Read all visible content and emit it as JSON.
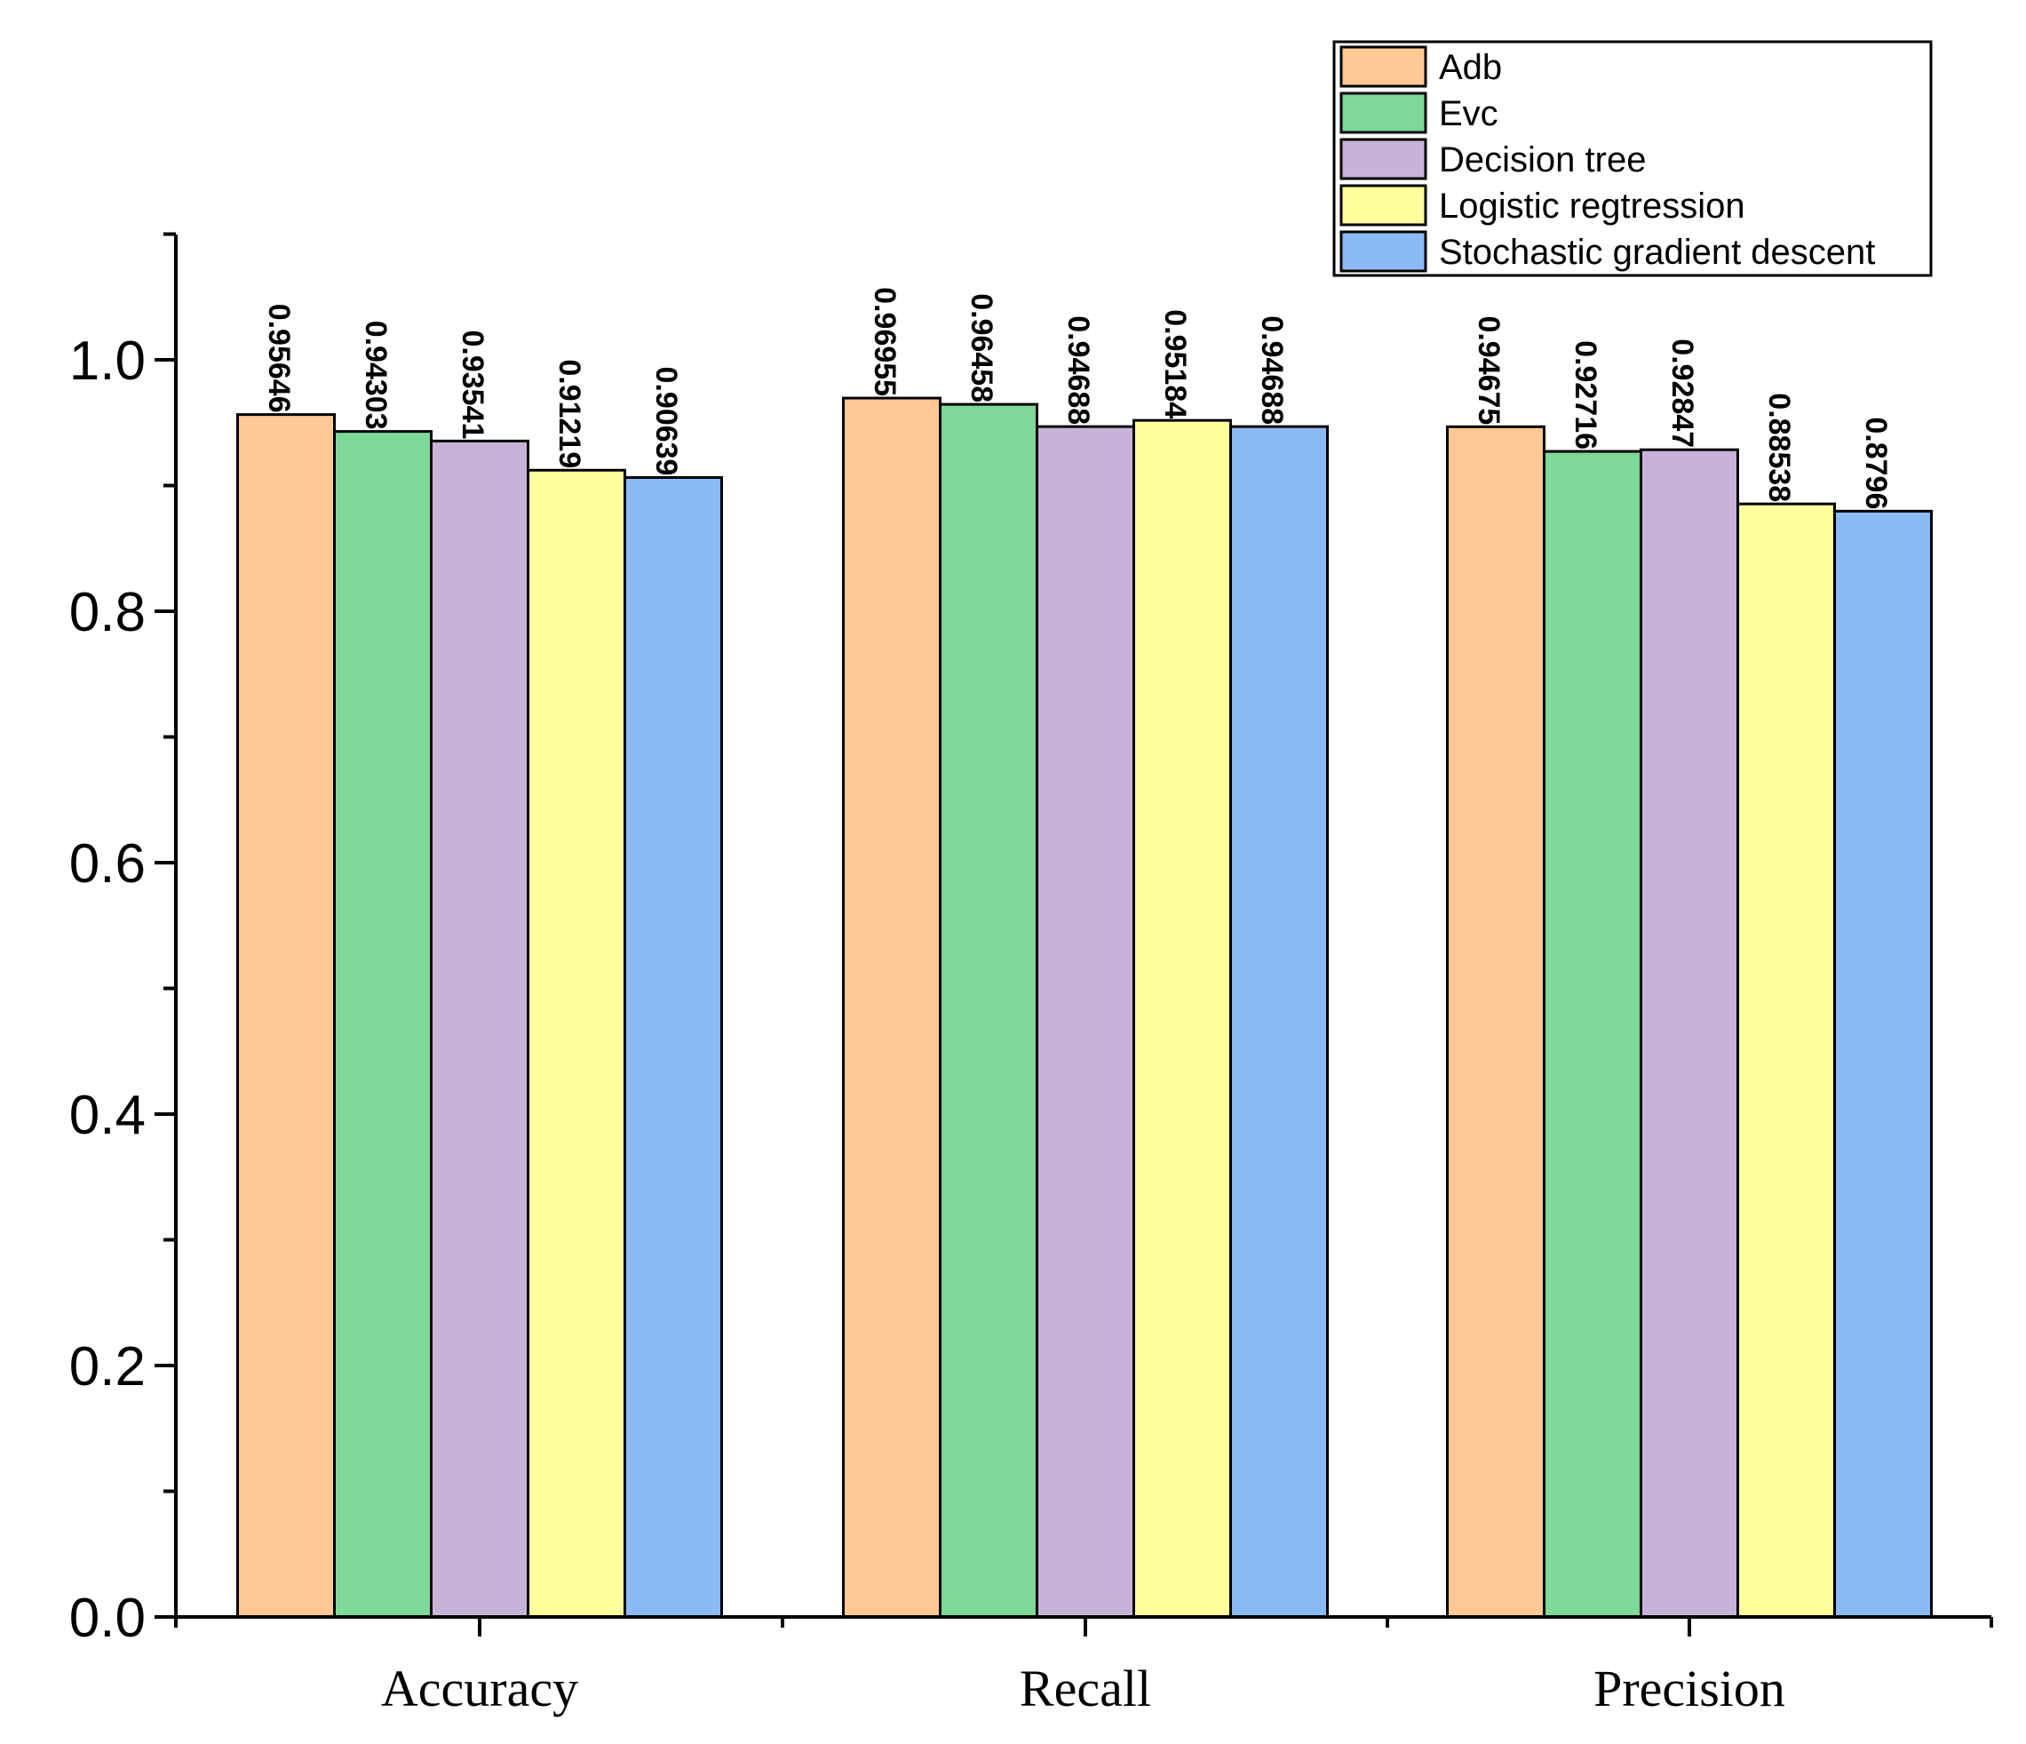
{
  "chart_data": {
    "type": "bar",
    "title": "",
    "xlabel": "",
    "ylabel": "",
    "ylim": [
      0,
      1.1
    ],
    "yticks": [
      0.0,
      0.2,
      0.4,
      0.6,
      0.8,
      1.0
    ],
    "ytick_labels": [
      "0.0",
      "0.2",
      "0.4",
      "0.6",
      "0.8",
      "1.0"
    ],
    "grid": false,
    "legend_position": "top-right",
    "categories": [
      "Accuracy",
      "Recall",
      "Precision"
    ],
    "series": [
      {
        "name": "Adb",
        "color": "#FFC894",
        "values": [
          0.95646,
          0.96955,
          0.94675
        ],
        "labels": [
          "0.95646",
          "0.96955",
          "0.94675"
        ]
      },
      {
        "name": "Evc",
        "color": "#7ED898",
        "values": [
          0.94303,
          0.96458,
          0.92716
        ],
        "labels": [
          "0.94303",
          "0.96458",
          "0.92716"
        ]
      },
      {
        "name": "Decision tree",
        "color": "#C8B3D8",
        "values": [
          0.93541,
          0.94688,
          0.92847
        ],
        "labels": [
          "0.93541",
          "0.94688",
          "0.92847"
        ]
      },
      {
        "name": "Logistic regtression",
        "color": "#FFFF9E",
        "values": [
          0.91219,
          0.95184,
          0.88538
        ],
        "labels": [
          "0.91219",
          "0.95184",
          "0.88538"
        ]
      },
      {
        "name": "Stochastic gradient descent",
        "color": "#8CBAF5",
        "values": [
          0.90639,
          0.94688,
          0.8796
        ],
        "labels": [
          "0.90639",
          "0.94688",
          "0.8796"
        ]
      }
    ]
  }
}
